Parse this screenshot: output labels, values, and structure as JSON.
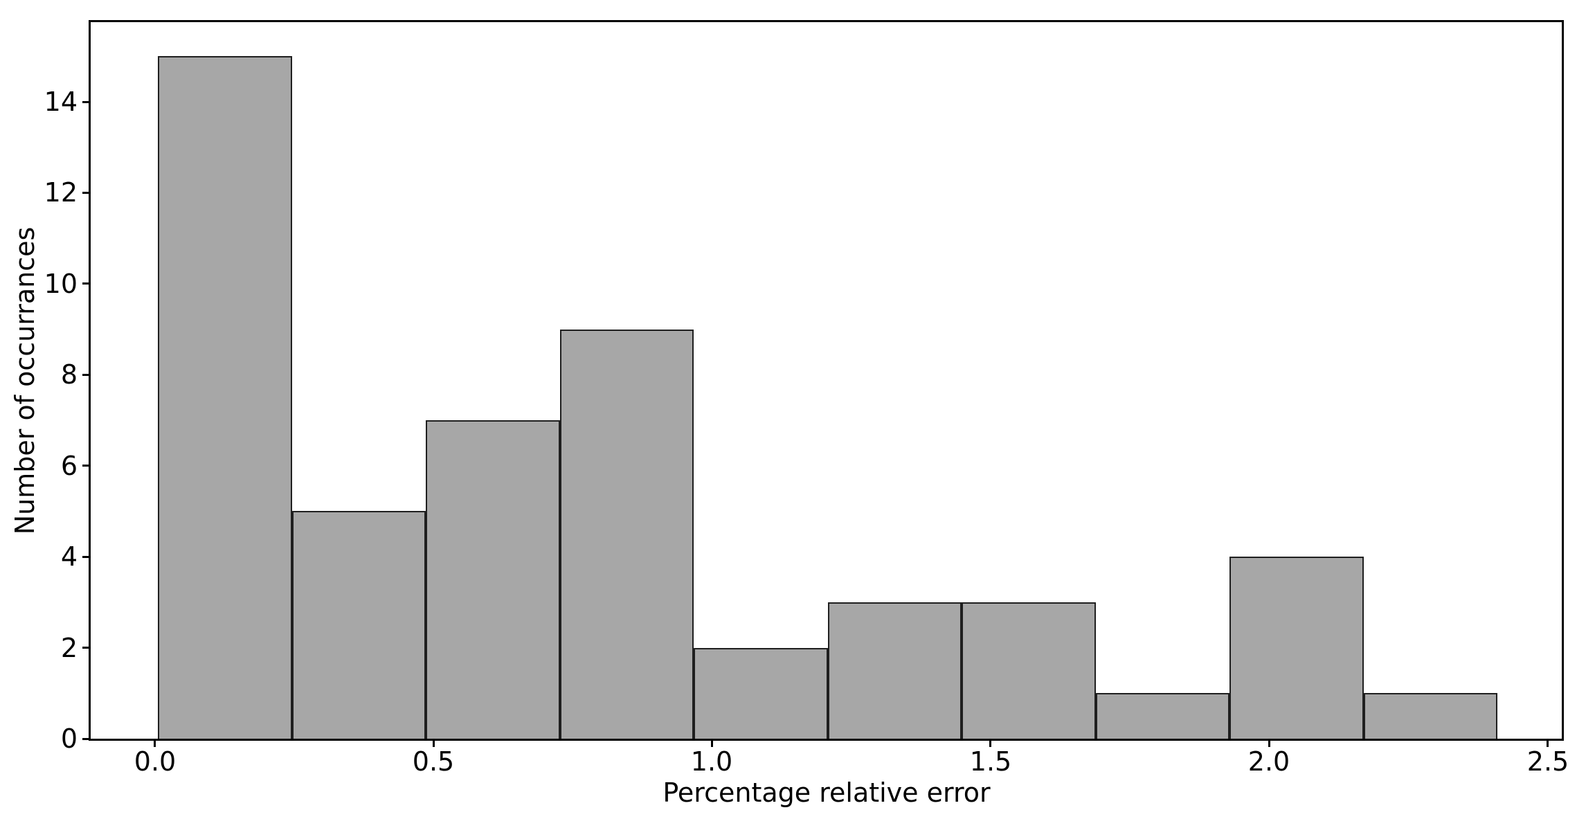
{
  "chart_data": {
    "type": "bar",
    "subtype": "histogram",
    "title": "",
    "xlabel": "Percentage relative error",
    "ylabel": "Number of occurrances",
    "bin_edges": [
      0.005,
      0.246,
      0.486,
      0.727,
      0.967,
      1.208,
      1.448,
      1.689,
      1.929,
      2.17,
      2.41
    ],
    "counts": [
      15,
      5,
      7,
      9,
      2,
      3,
      3,
      1,
      4,
      1
    ],
    "xticks": {
      "values": [
        0.0,
        0.5,
        1.0,
        1.5,
        2.0,
        2.5
      ],
      "labels": [
        "0.0",
        "0.5",
        "1.0",
        "1.5",
        "2.0",
        "2.5"
      ]
    },
    "yticks": {
      "values": [
        0,
        2,
        4,
        6,
        8,
        10,
        12,
        14
      ],
      "labels": [
        "0",
        "2",
        "4",
        "6",
        "8",
        "10",
        "12",
        "14"
      ]
    },
    "xlim": [
      -0.115,
      2.525
    ],
    "ylim": [
      0,
      15.75
    ],
    "grid": false,
    "legend_position": "none",
    "colors": {
      "bar_fill": "#a7a7a7",
      "bar_edge": "#1f1f1f",
      "axis": "#000000",
      "text": "#000000",
      "background": "#ffffff"
    }
  }
}
